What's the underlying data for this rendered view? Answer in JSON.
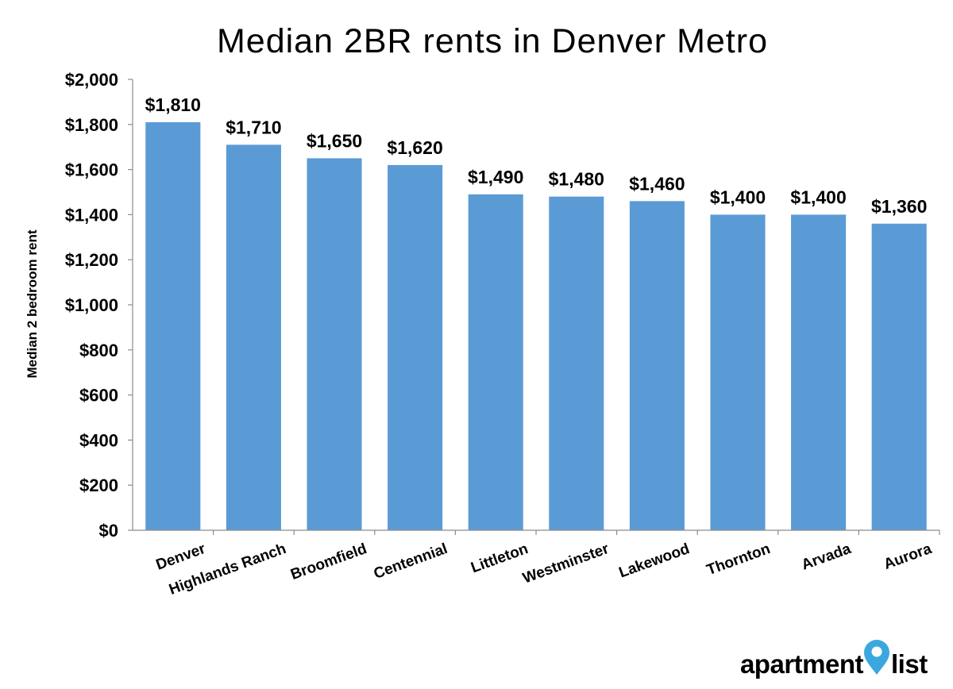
{
  "chart_data": {
    "type": "bar",
    "title": "Median 2BR rents in Denver Metro",
    "ylabel": "Median 2 bedroom rent",
    "xlabel": "",
    "ylim": [
      0,
      2000
    ],
    "ytick_values": [
      0,
      200,
      400,
      600,
      800,
      1000,
      1200,
      1400,
      1600,
      1800,
      2000
    ],
    "ytick_labels": [
      "$0",
      "$200",
      "$400",
      "$600",
      "$800",
      "$1,000",
      "$1,200",
      "$1,400",
      "$1,600",
      "$1,800",
      "$2,000"
    ],
    "categories": [
      "Denver",
      "Highlands Ranch",
      "Broomfield",
      "Centennial",
      "Littleton",
      "Westminster",
      "Lakewood",
      "Thornton",
      "Arvada",
      "Aurora"
    ],
    "values": [
      1810,
      1710,
      1650,
      1620,
      1490,
      1480,
      1460,
      1400,
      1400,
      1360
    ],
    "data_labels": [
      "$1,810",
      "$1,710",
      "$1,650",
      "$1,620",
      "$1,490",
      "$1,480",
      "$1,460",
      "$1,400",
      "$1,400",
      "$1,360"
    ],
    "bar_color": "#5b9bd5",
    "grid": false,
    "legend": "none"
  },
  "branding": {
    "logo_word1": "apartment",
    "logo_word2": "list",
    "pin_color": "#3aa8df"
  }
}
